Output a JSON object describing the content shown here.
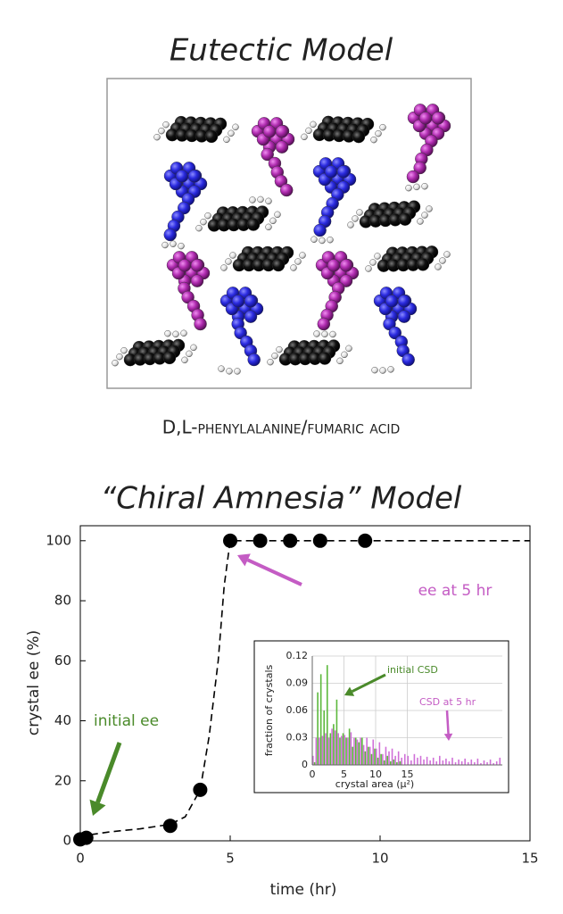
{
  "title": "Eutectic Model",
  "image_caption": "D,L-phenylalanine/fumaric acid",
  "chart_data": [
    {
      "type": "scatter",
      "title": "“Chiral Amnesia” Model",
      "x_label": "time (hr)",
      "y_label": "crystal ee (%)",
      "xlim": [
        0,
        15
      ],
      "ylim": [
        0,
        105
      ],
      "xticks": [
        0,
        5,
        10,
        15
      ],
      "yticks": [
        0,
        20,
        40,
        60,
        80,
        100
      ],
      "series": [
        {
          "color": "#000000",
          "marker": "circle",
          "x": [
            0,
            0.2,
            3,
            4,
            5,
            6,
            7,
            8,
            9.5
          ],
          "values": [
            0.5,
            1,
            5,
            17,
            100,
            100,
            100,
            100,
            100
          ]
        },
        {
          "color": "#000000",
          "line": "dashed",
          "x": [
            0,
            0.3,
            1,
            2,
            3,
            3.5,
            4,
            4.3,
            4.6,
            4.8,
            5,
            6,
            10,
            15
          ],
          "values": [
            0.5,
            2,
            3,
            4,
            5.5,
            8,
            17,
            35,
            60,
            85,
            100,
            100,
            100,
            100
          ]
        }
      ],
      "annotations": [
        {
          "text": "initial ee",
          "color": "#4a8a2a"
        },
        {
          "text": "ee at 5 hr",
          "color": "#c45cc4"
        }
      ]
    },
    {
      "type": "bar",
      "x_label": "crystal area (μ²)",
      "y_label": "fraction of crystals",
      "xlim": [
        0,
        30
      ],
      "ylim": [
        0,
        0.12
      ],
      "xticks": [
        0,
        5,
        10,
        15
      ],
      "yticks": [
        0,
        0.03,
        0.06,
        0.09,
        0.12
      ],
      "grid": true,
      "x": [
        0,
        0.5,
        1,
        1.5,
        2,
        2.5,
        3,
        3.5,
        4,
        4.5,
        5,
        5.5,
        6,
        6.5,
        7,
        7.5,
        8,
        8.5,
        9,
        9.5,
        10,
        10.5,
        11,
        11.5,
        12,
        12.5,
        13,
        13.5,
        14,
        14.5,
        15,
        15.5,
        16,
        16.5,
        17,
        17.5,
        18,
        18.5,
        19,
        19.5,
        20,
        20.5,
        21,
        21.5,
        22,
        22.5,
        23,
        23.5,
        24,
        24.5,
        25,
        25.5,
        26,
        26.5,
        27,
        27.5,
        28,
        28.5,
        29,
        29.5
      ],
      "series": [
        {
          "color": "#d070d8",
          "values": [
            0.01,
            0.03,
            0.03,
            0.032,
            0.035,
            0.03,
            0.04,
            0.038,
            0.035,
            0.032,
            0.033,
            0.03,
            0.036,
            0.03,
            0.028,
            0.03,
            0.022,
            0.03,
            0.02,
            0.028,
            0.018,
            0.025,
            0.012,
            0.02,
            0.015,
            0.018,
            0.01,
            0.015,
            0.008,
            0.012,
            0.01,
            0.005,
            0.012,
            0.008,
            0.01,
            0.006,
            0.009,
            0.005,
            0.008,
            0.004,
            0.01,
            0.005,
            0.007,
            0.004,
            0.008,
            0.003,
            0.006,
            0.004,
            0.007,
            0.003,
            0.006,
            0.003,
            0.007,
            0.002,
            0.005,
            0.003,
            0.006,
            0.002,
            0.004,
            0.008
          ]
        },
        {
          "color": "#5cb83c",
          "values": [
            0.003,
            0.08,
            0.1,
            0.06,
            0.11,
            0.035,
            0.045,
            0.072,
            0.03,
            0.035,
            0.03,
            0.04,
            0.02,
            0.03,
            0.025,
            0.03,
            0.015,
            0.02,
            0.012,
            0.018,
            0.008,
            0.012,
            0.005,
            0.01,
            0.004,
            0.006,
            0.003,
            0.004,
            0,
            0,
            0,
            0,
            0,
            0,
            0,
            0,
            0,
            0,
            0,
            0,
            0,
            0,
            0,
            0,
            0,
            0,
            0,
            0,
            0,
            0,
            0,
            0,
            0,
            0,
            0,
            0,
            0,
            0,
            0,
            0
          ]
        }
      ],
      "annotations": [
        {
          "text": "initial CSD",
          "color": "#4a8a2a"
        },
        {
          "text": "CSD at 5 hr",
          "color": "#c45cc4"
        }
      ]
    }
  ]
}
